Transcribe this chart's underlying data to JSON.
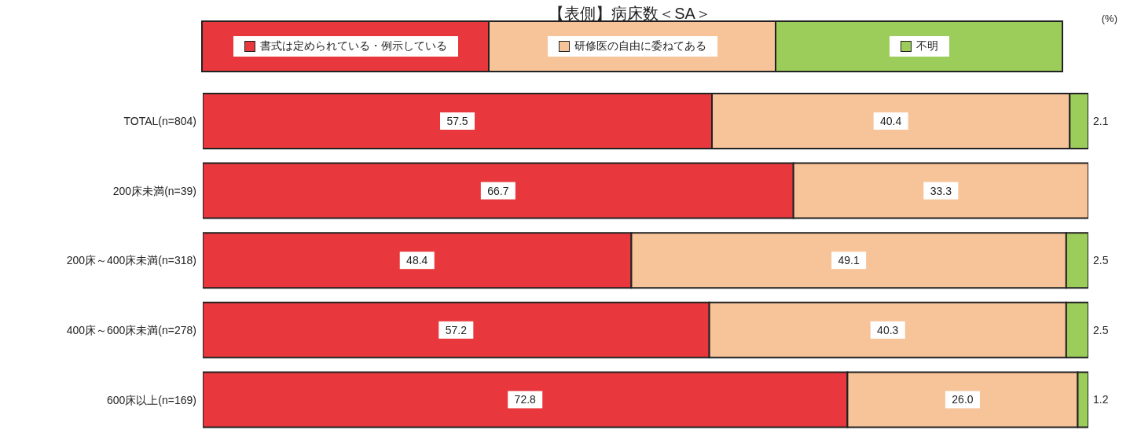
{
  "chart_data": {
    "type": "bar",
    "orientation": "horizontal",
    "stacked": true,
    "title": "【表側】病床数＜SA＞",
    "annotations": [
      "(%)"
    ],
    "categories": [
      "TOTAL(n=804)",
      "200床未満(n=39)",
      "200床～400床未満(n=318)",
      "400床～600床未満(n=278)",
      "600床以上(n=169)"
    ],
    "series": [
      {
        "name": "書式は定められている・例示している",
        "color": "#e8383d",
        "values": [
          57.5,
          66.7,
          48.4,
          57.2,
          72.8
        ],
        "value_labels": [
          "57.5",
          "66.7",
          "48.4",
          "57.2",
          "72.8"
        ]
      },
      {
        "name": "研修医の自由に委ねてある",
        "color": "#f7c49a",
        "values": [
          40.4,
          33.3,
          49.1,
          40.3,
          26.0
        ],
        "value_labels": [
          "40.4",
          "33.3",
          "49.1",
          "40.3",
          "26.0"
        ]
      },
      {
        "name": "不明",
        "color": "#9ccc5a",
        "values": [
          2.1,
          0,
          2.5,
          2.5,
          1.2
        ],
        "value_labels": [
          "2.1",
          null,
          "2.5",
          "2.5",
          "1.2"
        ]
      }
    ],
    "xlim": [
      0,
      100
    ],
    "tick_labels": "y",
    "legend": "top"
  }
}
